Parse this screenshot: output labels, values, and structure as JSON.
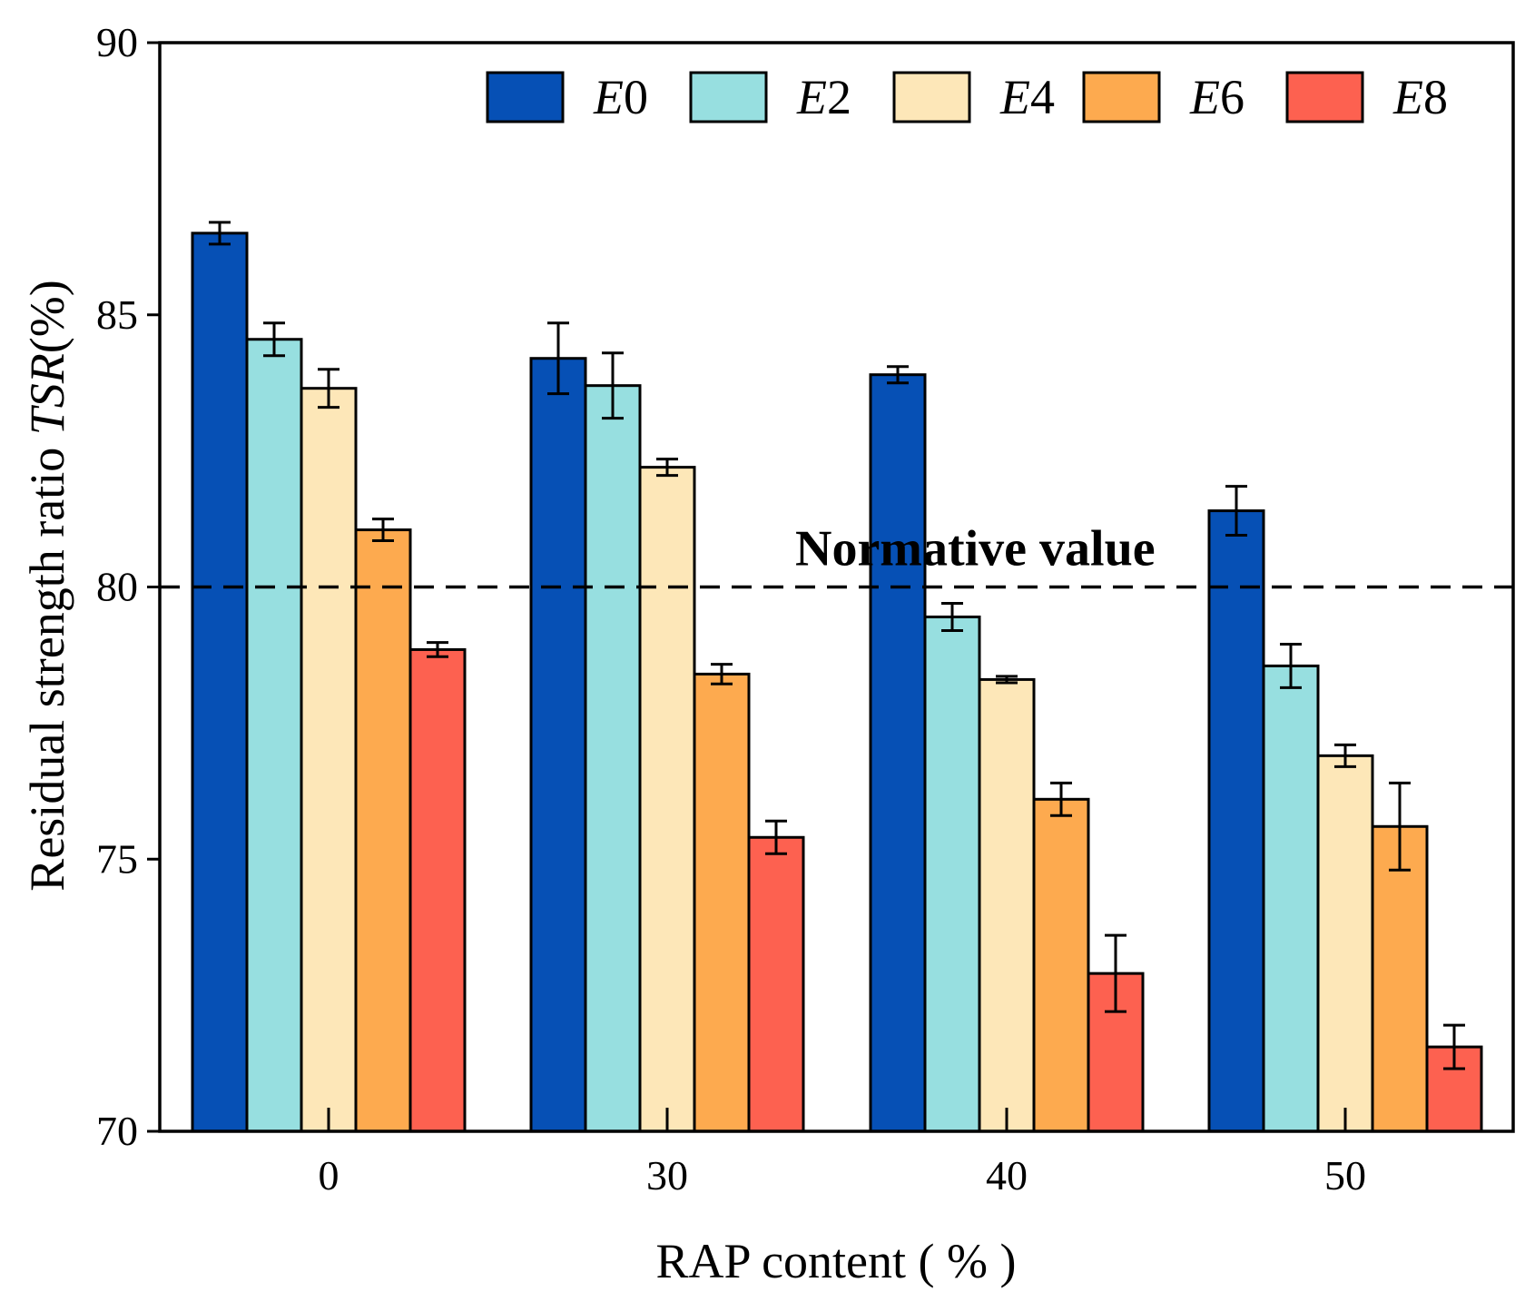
{
  "chart_data": {
    "type": "bar",
    "categories": [
      "0",
      "30",
      "40",
      "50"
    ],
    "xlabel": "RAP content ( % )",
    "ylabel_prefix": "Residual strength ratio ",
    "ylabel_var": "TSR",
    "ylabel_suffix": "(%)",
    "ylim": [
      70,
      90
    ],
    "yticks": [
      "70",
      "75",
      "80",
      "85",
      "90"
    ],
    "legend_position": "top-right",
    "series": [
      {
        "name": "E0",
        "letter": "E",
        "digit": "0",
        "color": "#0650b5",
        "values": [
          86.5,
          84.2,
          83.9,
          81.4
        ],
        "errors": [
          0.2,
          0.65,
          0.15,
          0.45
        ]
      },
      {
        "name": "E2",
        "letter": "E",
        "digit": "2",
        "color": "#97dfe0",
        "values": [
          84.55,
          83.7,
          79.45,
          78.55
        ],
        "errors": [
          0.3,
          0.6,
          0.25,
          0.4
        ]
      },
      {
        "name": "E4",
        "letter": "E",
        "digit": "4",
        "color": "#fde7b8",
        "values": [
          83.65,
          82.2,
          78.3,
          76.9
        ],
        "errors": [
          0.35,
          0.15,
          0.06,
          0.2
        ]
      },
      {
        "name": "E6",
        "letter": "E",
        "digit": "6",
        "color": "#fdaa4f",
        "values": [
          81.05,
          78.4,
          76.1,
          75.6
        ],
        "errors": [
          0.2,
          0.18,
          0.3,
          0.8
        ]
      },
      {
        "name": "E8",
        "letter": "E",
        "digit": "8",
        "color": "#fd6150",
        "values": [
          78.85,
          75.4,
          72.9,
          71.55
        ],
        "errors": [
          0.13,
          0.3,
          0.7,
          0.4
        ]
      }
    ],
    "reference_line": {
      "value": 80,
      "label": "Normative value"
    }
  }
}
